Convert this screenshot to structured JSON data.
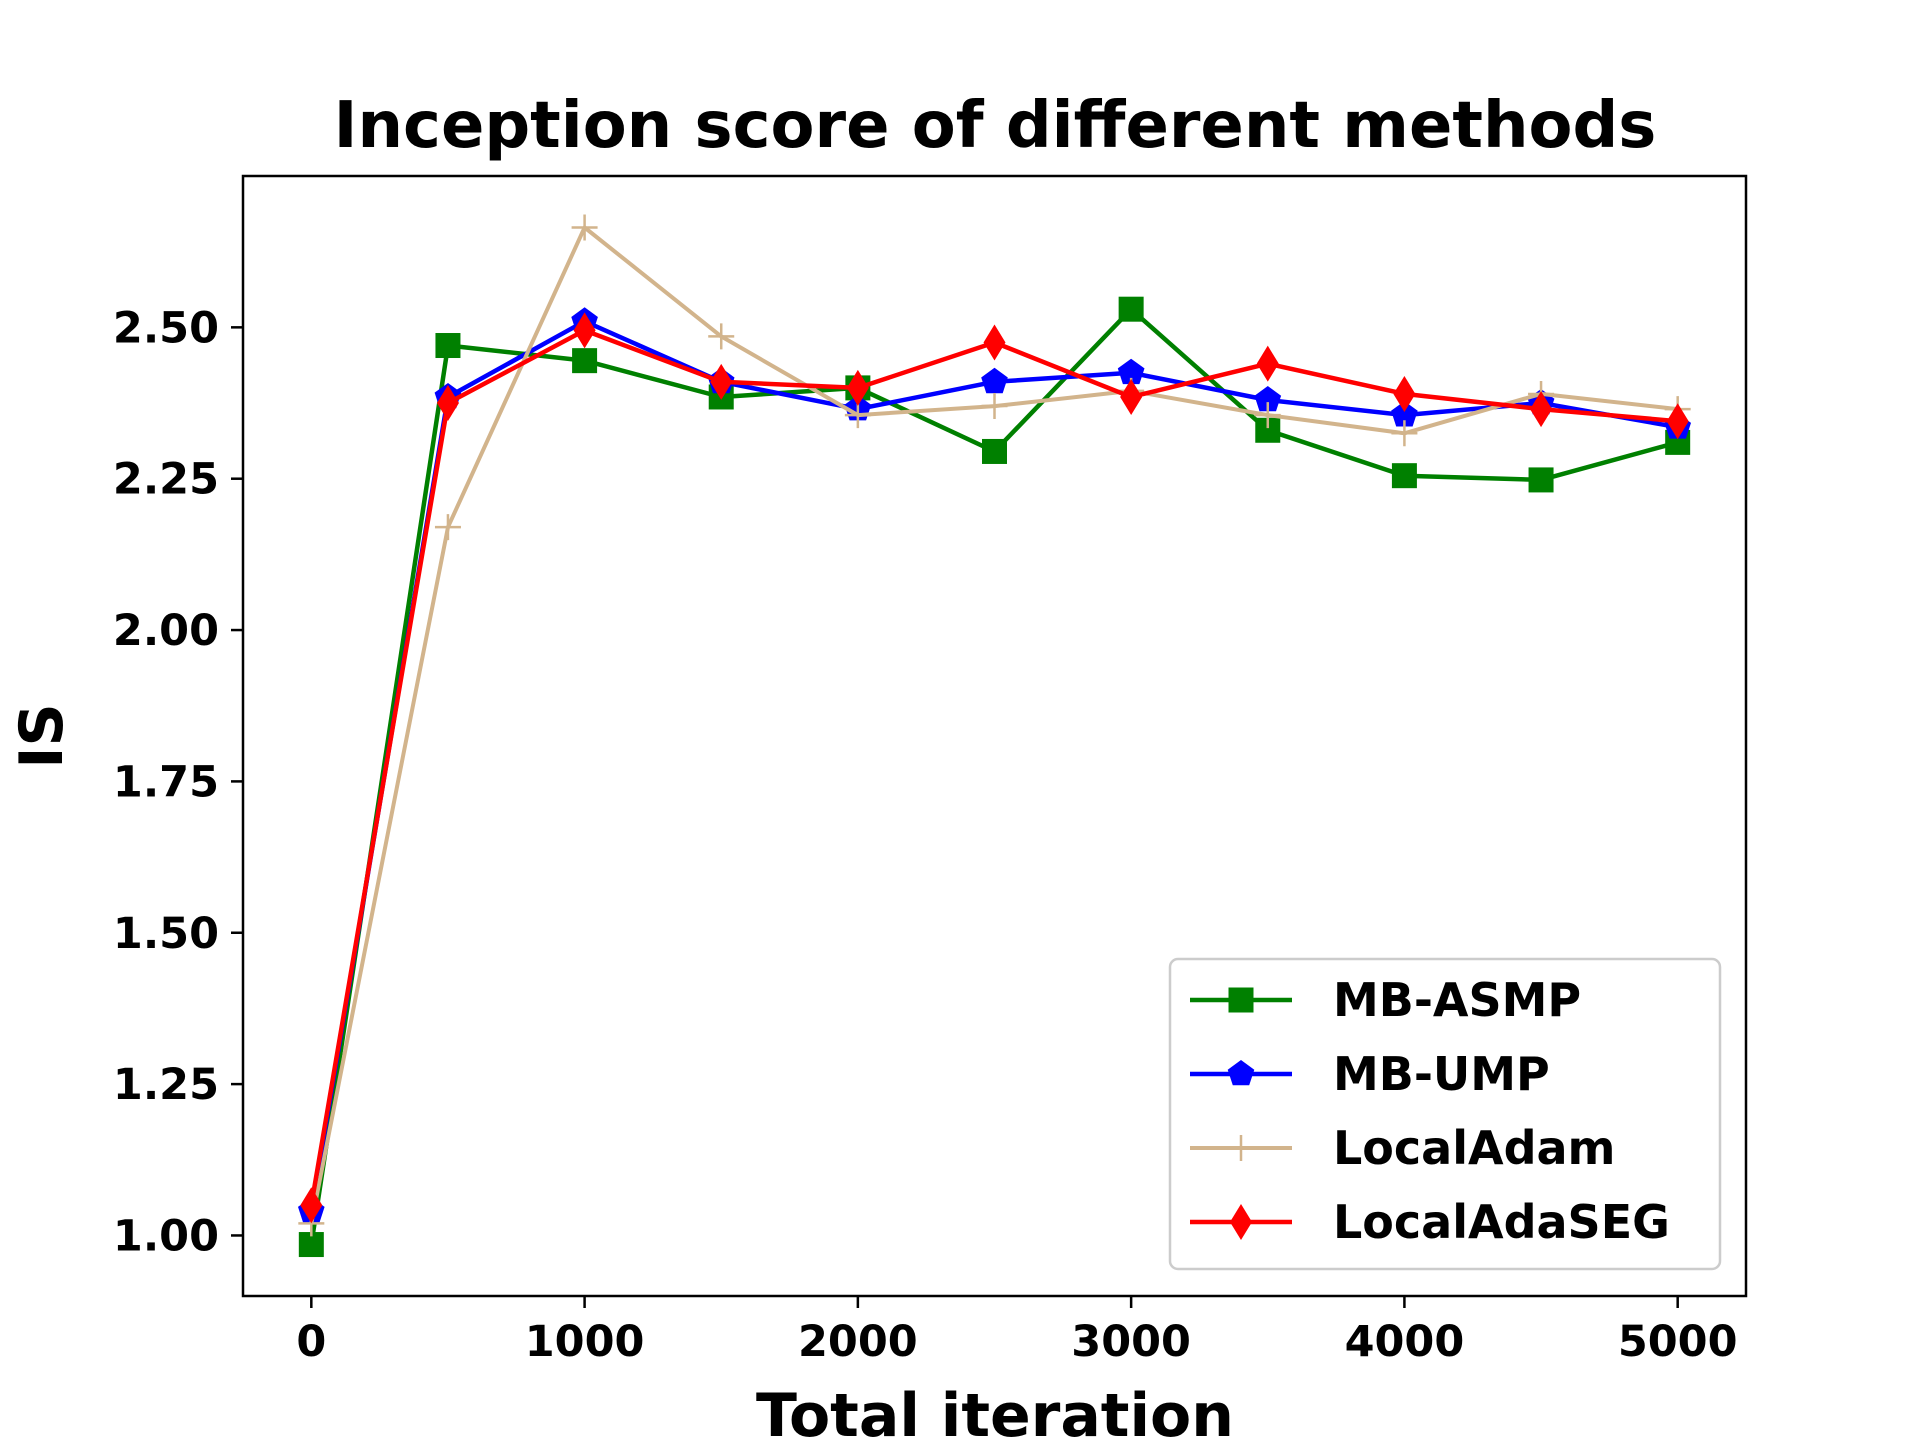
{
  "chart_data": {
    "type": "line",
    "title": "Inception score of different methods",
    "xlabel": "Total iteration",
    "ylabel": "IS",
    "x": [
      0,
      500,
      1000,
      1500,
      2000,
      2500,
      3000,
      3500,
      4000,
      4500,
      5000
    ],
    "xlim": [
      -250,
      5250
    ],
    "ylim": [
      0.9,
      2.75
    ],
    "xticks": [
      0,
      1000,
      2000,
      3000,
      4000,
      5000
    ],
    "xtick_labels": [
      "0",
      "1000",
      "2000",
      "3000",
      "4000",
      "5000"
    ],
    "yticks": [
      1.0,
      1.25,
      1.5,
      1.75,
      2.0,
      2.25,
      2.5
    ],
    "ytick_labels": [
      "1.00",
      "1.25",
      "1.50",
      "1.75",
      "2.00",
      "2.25",
      "2.50"
    ],
    "grid": false,
    "legend_position": "lower-right",
    "series": [
      {
        "name": "MB-ASMP",
        "color": "#008000",
        "marker": "square",
        "values": [
          0.985,
          2.47,
          2.445,
          2.385,
          2.4,
          2.295,
          2.53,
          2.33,
          2.255,
          2.248,
          2.31
        ]
      },
      {
        "name": "MB-UMP",
        "color": "#0000ff",
        "marker": "pentagon",
        "values": [
          1.04,
          2.385,
          2.51,
          2.41,
          2.365,
          2.41,
          2.425,
          2.38,
          2.355,
          2.375,
          2.335
        ]
      },
      {
        "name": "LocalAdam",
        "color": "#d2b48c",
        "marker": "plus",
        "values": [
          1.02,
          2.17,
          2.665,
          2.485,
          2.355,
          2.37,
          2.395,
          2.355,
          2.325,
          2.39,
          2.365
        ]
      },
      {
        "name": "LocalAdaSEG",
        "color": "#ff0000",
        "marker": "diamond",
        "values": [
          1.05,
          2.375,
          2.495,
          2.41,
          2.4,
          2.475,
          2.385,
          2.44,
          2.39,
          2.365,
          2.345
        ]
      }
    ]
  }
}
